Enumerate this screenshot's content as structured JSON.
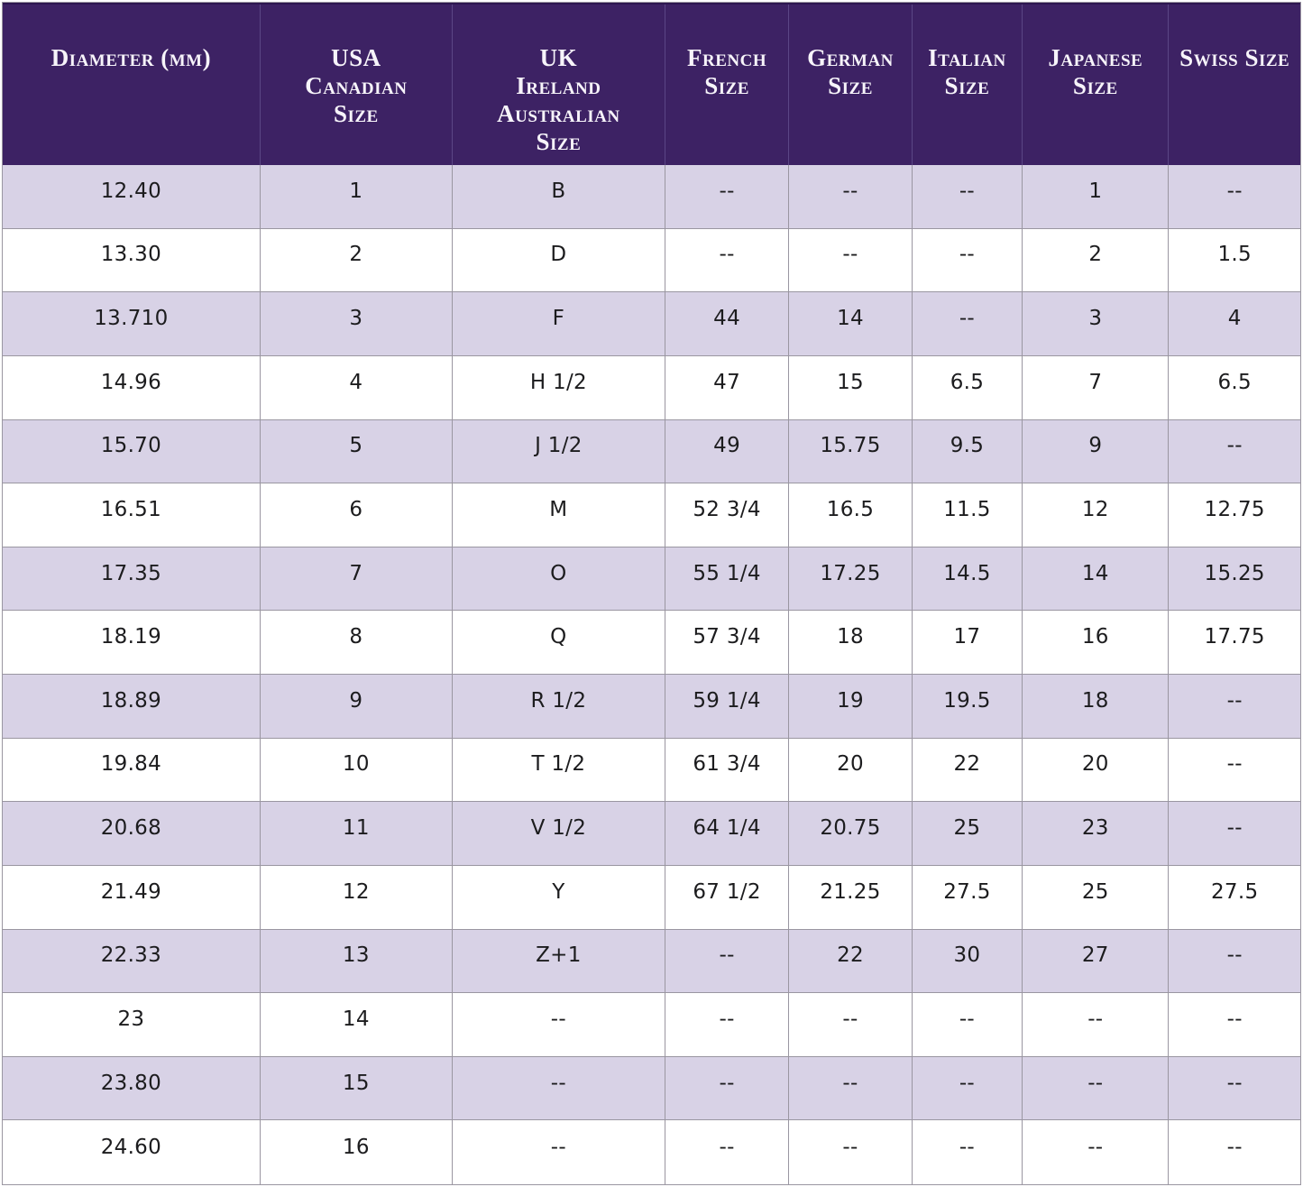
{
  "colors": {
    "header_bg": "#3d2264",
    "header_text": "#f7f4fa",
    "header_divider": "#5b4685",
    "row_alt_bg": "#d8d2e6",
    "row_bg": "#ffffff",
    "grid_border": "#9a96a1",
    "body_text": "#1c1c1e"
  },
  "table": {
    "columns": [
      {
        "key": "diameter",
        "label_lines": [
          "Diameter (mm)"
        ]
      },
      {
        "key": "usa",
        "label_lines": [
          "USA",
          "Canadian",
          "Size"
        ]
      },
      {
        "key": "uk",
        "label_lines": [
          "UK",
          "Ireland",
          "Australian",
          "Size"
        ]
      },
      {
        "key": "french",
        "label_lines": [
          "French",
          "Size"
        ]
      },
      {
        "key": "german",
        "label_lines": [
          "German",
          "Size"
        ]
      },
      {
        "key": "italian",
        "label_lines": [
          "Italian",
          "Size"
        ]
      },
      {
        "key": "japanese",
        "label_lines": [
          "Japanese Size"
        ]
      },
      {
        "key": "swiss",
        "label_lines": [
          "Swiss Size"
        ]
      }
    ],
    "rows": [
      [
        "12.40",
        "1",
        "B",
        "--",
        "--",
        "--",
        "1",
        "--"
      ],
      [
        "13.30",
        "2",
        "D",
        "--",
        "--",
        "--",
        "2",
        "1.5"
      ],
      [
        "13.710",
        "3",
        "F",
        "44",
        "14",
        "--",
        "3",
        "4"
      ],
      [
        "14.96",
        "4",
        "H 1/2",
        "47",
        "15",
        "6.5",
        "7",
        "6.5"
      ],
      [
        "15.70",
        "5",
        "J 1/2",
        "49",
        "15.75",
        "9.5",
        "9",
        "--"
      ],
      [
        "16.51",
        "6",
        "M",
        "52 3/4",
        "16.5",
        "11.5",
        "12",
        "12.75"
      ],
      [
        "17.35",
        "7",
        "O",
        "55 1/4",
        "17.25",
        "14.5",
        "14",
        "15.25"
      ],
      [
        "18.19",
        "8",
        "Q",
        "57 3/4",
        "18",
        "17",
        "16",
        "17.75"
      ],
      [
        "18.89",
        "9",
        "R 1/2",
        "59 1/4",
        "19",
        "19.5",
        "18",
        "--"
      ],
      [
        "19.84",
        "10",
        "T 1/2",
        "61 3/4",
        "20",
        "22",
        "20",
        "--"
      ],
      [
        "20.68",
        "11",
        "V 1/2",
        "64 1/4",
        "20.75",
        "25",
        "23",
        "--"
      ],
      [
        "21.49",
        "12",
        "Y",
        "67 1/2",
        "21.25",
        "27.5",
        "25",
        "27.5"
      ],
      [
        "22.33",
        "13",
        "Z+1",
        "--",
        "22",
        "30",
        "27",
        "--"
      ],
      [
        "23",
        "14",
        "--",
        "--",
        "--",
        "--",
        "--",
        "--"
      ],
      [
        "23.80",
        "15",
        "--",
        "--",
        "--",
        "--",
        "--",
        "--"
      ],
      [
        "24.60",
        "16",
        "--",
        "--",
        "--",
        "--",
        "--",
        "--"
      ]
    ]
  }
}
